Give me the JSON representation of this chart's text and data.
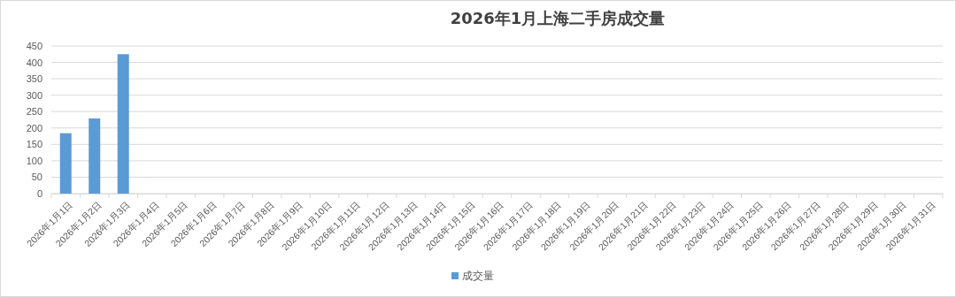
{
  "chart_data": {
    "type": "bar",
    "title": "2026年1月上海二手房成交量",
    "categories": [
      "2026年1月1日",
      "2026年1月2日",
      "2026年1月3日",
      "2026年1月4日",
      "2026年1月5日",
      "2026年1月6日",
      "2026年1月7日",
      "2026年1月8日",
      "2026年1月9日",
      "2026年1月10日",
      "2026年1月11日",
      "2026年1月12日",
      "2026年1月13日",
      "2026年1月14日",
      "2026年1月15日",
      "2026年1月16日",
      "2026年1月17日",
      "2026年1月18日",
      "2026年1月19日",
      "2026年1月20日",
      "2026年1月21日",
      "2026年1月22日",
      "2026年1月23日",
      "2026年1月24日",
      "2026年1月25日",
      "2026年1月26日",
      "2026年1月27日",
      "2026年1月28日",
      "2026年1月29日",
      "2026年1月30日",
      "2026年1月31日"
    ],
    "series": [
      {
        "name": "成交量",
        "color": "#5b9bd5",
        "values": [
          184,
          229,
          425,
          null,
          null,
          null,
          null,
          null,
          null,
          null,
          null,
          null,
          null,
          null,
          null,
          null,
          null,
          null,
          null,
          null,
          null,
          null,
          null,
          null,
          null,
          null,
          null,
          null,
          null,
          null,
          null
        ]
      }
    ],
    "ylim": [
      0,
      450
    ],
    "yticks": [
      0,
      50,
      100,
      150,
      200,
      250,
      300,
      350,
      400,
      450
    ],
    "grid": "y",
    "legend": "bottom"
  }
}
